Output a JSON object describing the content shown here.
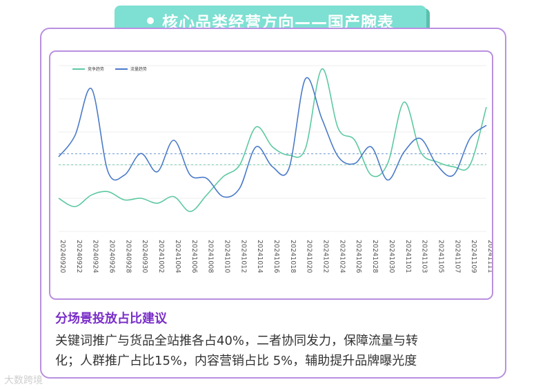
{
  "header": {
    "title": "核心品类经营方向——国产腕表"
  },
  "chart_data": {
    "type": "line",
    "categories": [
      "20240920",
      "20240922",
      "20240924",
      "20240926",
      "20240928",
      "20240930",
      "20241002",
      "20241004",
      "20241006",
      "20241008",
      "20241010",
      "20241012",
      "20241014",
      "20241016",
      "20241018",
      "20241020",
      "20241022",
      "20241024",
      "20241026",
      "20241028",
      "20241030",
      "20241101",
      "20241103",
      "20241105",
      "20241107",
      "20241109",
      "20241111"
    ],
    "series": [
      {
        "name": "竞争趋势",
        "color": "#5cc9a0",
        "values": [
          20,
          15,
          22,
          24,
          19,
          20,
          17,
          21,
          12,
          22,
          33,
          40,
          63,
          51,
          46,
          50,
          98,
          62,
          55,
          34,
          41,
          78,
          48,
          42,
          39,
          40,
          75
        ]
      },
      {
        "name": "流量趋势",
        "color": "#4a7ac8",
        "values": [
          45,
          58,
          86,
          36,
          34,
          47,
          36,
          55,
          34,
          32,
          21,
          26,
          51,
          39,
          38,
          92,
          68,
          45,
          41,
          51,
          31,
          48,
          56,
          40,
          34,
          56,
          64
        ]
      }
    ],
    "grid": true,
    "legend": "top-left",
    "reference_lines": true,
    "xlabel": "",
    "ylabel": ""
  },
  "advice": {
    "title": "分场景投放占比建议",
    "line1": "关键词推广与货品全站推各占40%，二者协同发力，保障流量与转",
    "line2": "化；人群推广占比15%，内容营销占比 5%，辅助提升品牌曝光度"
  },
  "watermark": "大数跨境"
}
